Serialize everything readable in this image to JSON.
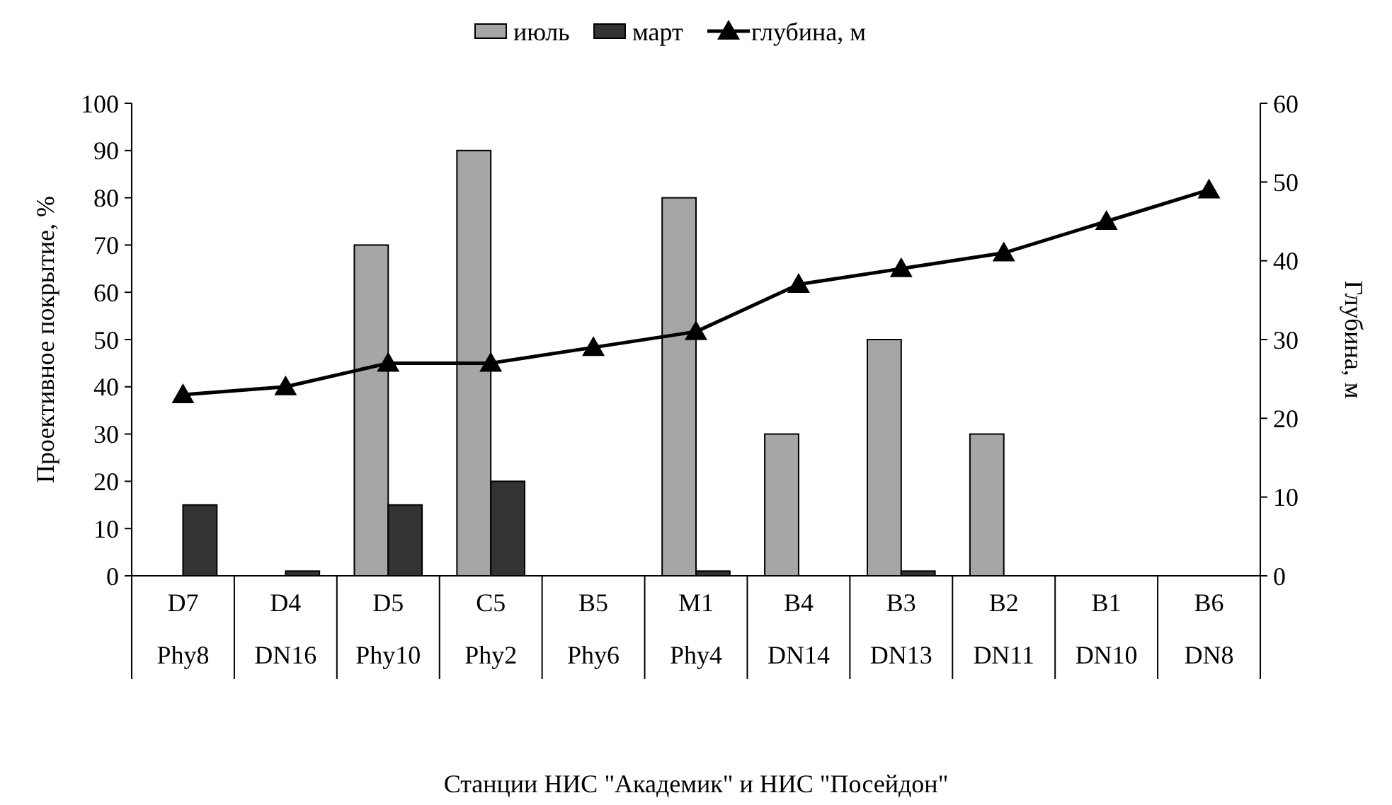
{
  "chart_data": {
    "type": "bar",
    "xlabel": "Станции НИС \"Академик\" и НИС \"Посейдон\"",
    "ylabel": "Проективное покрытие, %",
    "y2label": "Глубина, м",
    "categories": [
      "D7\nPhy8",
      "D4\nDN16",
      "D5\nPhy10",
      "C5\nPhy2",
      "B5\nPhy6",
      "M1\nPhy4",
      "B4\nDN14",
      "B3\nDN13",
      "B2\nDN11",
      "B1\nDN10",
      "B6\nDN8"
    ],
    "series": [
      {
        "name": "июль",
        "color": "#a6a6a6",
        "values": [
          0,
          0,
          70,
          90,
          0,
          80,
          30,
          50,
          30,
          0,
          0
        ]
      },
      {
        "name": "март",
        "color": "#333333",
        "values": [
          15,
          1,
          15,
          20,
          0,
          1,
          0,
          1,
          0,
          0,
          0
        ]
      },
      {
        "name": "глубина, м",
        "type": "line",
        "axis": "y2",
        "color": "#000000",
        "marker": "triangle",
        "values": [
          23,
          24,
          27,
          27,
          29,
          31,
          37,
          39,
          41,
          45,
          49
        ]
      }
    ],
    "ylim": [
      0,
      100
    ],
    "yticks": [
      0,
      10,
      20,
      30,
      40,
      50,
      60,
      70,
      80,
      90,
      100
    ],
    "y2lim": [
      0,
      60
    ],
    "y2ticks": [
      0,
      10,
      20,
      30,
      40,
      50,
      60
    ],
    "legend": "top",
    "grid": false
  }
}
